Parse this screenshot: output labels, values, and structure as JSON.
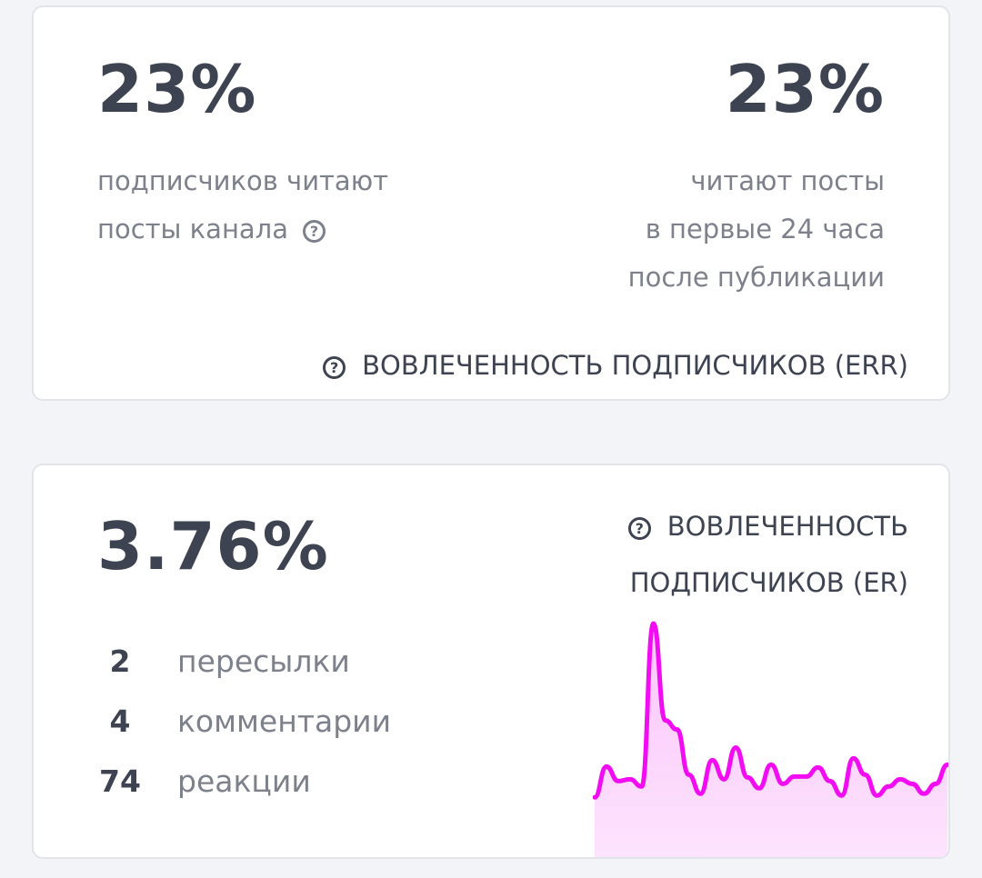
{
  "err_card": {
    "left_value": "23%",
    "left_caption": [
      "подписчиков читают",
      "посты канала"
    ],
    "right_value": "23%",
    "right_caption": [
      "читают посты",
      "в первые 24 часа",
      "после публикации"
    ],
    "footer_label": "ВОВЛЕЧЕННОСТЬ ПОДПИСЧИКОВ (ERR)",
    "help_icon": "question-circle-icon"
  },
  "er_card": {
    "value": "3.76%",
    "title_lines": [
      "ВОВЛЕЧЕННОСТЬ",
      "ПОДПИСЧИКОВ (ER)"
    ],
    "stats": [
      {
        "count": "2",
        "label": "пересылки"
      },
      {
        "count": "4",
        "label": "комментарии"
      },
      {
        "count": "74",
        "label": "реакции"
      }
    ],
    "sparkline": {
      "type": "area",
      "line_color": "#f20cf2",
      "fill_color": "#fdd6fd",
      "values": [
        70,
        104,
        88,
        90,
        82,
        262,
        155,
        145,
        95,
        74,
        111,
        90,
        125,
        92,
        80,
        106,
        85,
        93,
        93,
        103,
        88,
        72,
        113,
        95,
        72,
        82,
        90,
        85,
        74,
        85,
        106
      ]
    }
  }
}
